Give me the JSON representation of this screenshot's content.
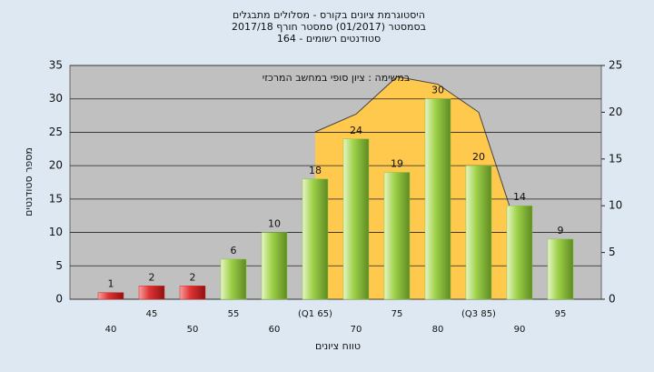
{
  "chart_data": {
    "type": "bar",
    "title": [
      "היסטוגרמת ציונים בקורס - מסלולים מתבגלים",
      "בסמסטר  (01/2017)  סמסטר חורף 2017/18",
      "סטודנטים רשומים - 164"
    ],
    "annotation": "במשימה : ציון סופי במחשב המרכזי",
    "x_label": "טווח ציונים",
    "y_label": "מספר סטודנטים",
    "categories": [
      "40",
      "45",
      "50",
      "55",
      "60",
      "(Q1 65)",
      "70",
      "75",
      "80",
      "(Q3 85)",
      "90",
      "95"
    ],
    "values": [
      1,
      2,
      2,
      6,
      10,
      18,
      24,
      19,
      30,
      20,
      14,
      9
    ],
    "bar_colors": [
      "#d42a2a",
      "#d42a2a",
      "#d42a2a",
      "#8cc63e",
      "#8cc63e",
      "#8cc63e",
      "#8cc63e",
      "#8cc63e",
      "#8cc63e",
      "#8cc63e",
      "#8cc63e",
      "#8cc63e"
    ],
    "area": {
      "axis": "y2",
      "color": "#ffc94d",
      "values": [
        null,
        null,
        null,
        null,
        null,
        17.9,
        19.8,
        23.8,
        23,
        20,
        6.7,
        null
      ]
    },
    "ylim": [
      0,
      35
    ],
    "yticks": [
      0,
      5,
      10,
      15,
      20,
      25,
      30,
      35
    ],
    "y2lim": [
      0,
      25
    ],
    "y2ticks": [
      0,
      5,
      10,
      15,
      20,
      25
    ],
    "grid": true
  }
}
